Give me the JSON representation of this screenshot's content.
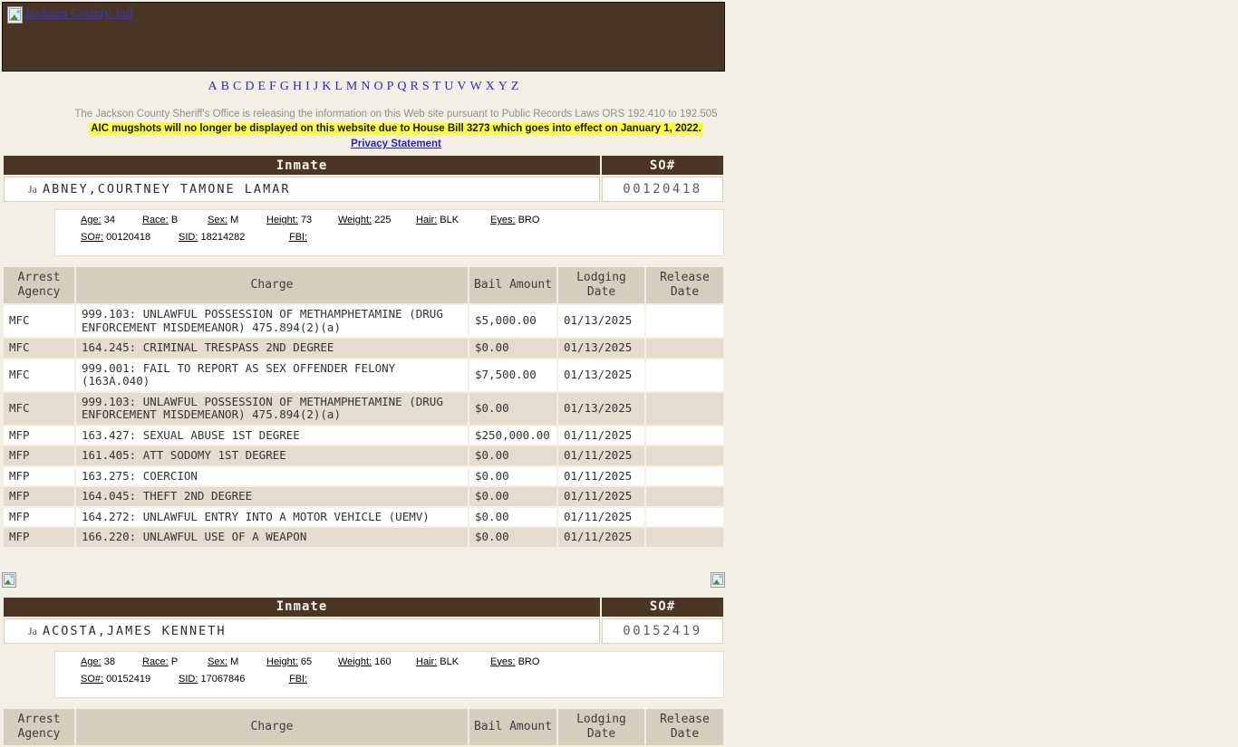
{
  "banner": {
    "title": "Jackson County Jail"
  },
  "alphabet": [
    "A",
    "B",
    "C",
    "D",
    "E",
    "F",
    "G",
    "H",
    "I",
    "J",
    "K",
    "L",
    "M",
    "N",
    "O",
    "P",
    "Q",
    "R",
    "S",
    "T",
    "U",
    "V",
    "W",
    "X",
    "Y",
    "Z"
  ],
  "top": {
    "disclaimer": "The Jackson County Sheriff's Office is releasing the information on this Web site pursuant to Public Records Laws ORS 192.410 to 192.505",
    "notice": "AIC mugshots will no longer be displayed on this website due to House Bill 3273 which goes into effect on January 1, 2022.",
    "privacy_link": "Privacy Statement"
  },
  "labels": {
    "inmate": "Inmate",
    "so": "SO#",
    "arrest_agency": "Arrest Agency",
    "charge": "Charge",
    "bail_amount": "Bail Amount",
    "lodging_date": "Lodging Date",
    "release_date": "Release Date",
    "age": "Age:",
    "race": "Race:",
    "sex": "Sex:",
    "height": "Height:",
    "weight": "Weight:",
    "hair": "Hair:",
    "eyes": "Eyes:",
    "so_label": "SO#:",
    "sid": "SID:",
    "fbi": "FBI:"
  },
  "inmates": [
    {
      "photo_alt": "Ja",
      "name": "ABNEY,COURTNEY TAMONE LAMAR",
      "so_number": "00120418",
      "demo": {
        "age": "34",
        "race": "B",
        "sex": "M",
        "height": "73",
        "weight": "225",
        "hair": "BLK",
        "eyes": "BRO",
        "so": "00120418",
        "sid": "18214282",
        "fbi": ""
      },
      "charges": [
        {
          "agency": "MFC",
          "charge": "999.103: UNLAWFUL POSSESSION OF METHAMPHETAMINE (DRUG ENFORCEMENT MISDEMEANOR) 475.894(2)(a)",
          "bail": "$5,000.00",
          "lodging": "01/13/2025",
          "release": ""
        },
        {
          "agency": "MFC",
          "charge": "164.245: CRIMINAL TRESPASS 2ND DEGREE",
          "bail": "$0.00",
          "lodging": "01/13/2025",
          "release": ""
        },
        {
          "agency": "MFC",
          "charge": "999.001: FAIL TO REPORT AS SEX OFFENDER FELONY (163A.040)",
          "bail": "$7,500.00",
          "lodging": "01/13/2025",
          "release": ""
        },
        {
          "agency": "MFC",
          "charge": "999.103: UNLAWFUL POSSESSION OF METHAMPHETAMINE (DRUG ENFORCEMENT MISDEMEANOR) 475.894(2)(a)",
          "bail": "$0.00",
          "lodging": "01/13/2025",
          "release": ""
        },
        {
          "agency": "MFP",
          "charge": "163.427: SEXUAL ABUSE 1ST DEGREE",
          "bail": "$250,000.00",
          "lodging": "01/11/2025",
          "release": ""
        },
        {
          "agency": "MFP",
          "charge": "161.405: ATT SODOMY 1ST DEGREE",
          "bail": "$0.00",
          "lodging": "01/11/2025",
          "release": ""
        },
        {
          "agency": "MFP",
          "charge": "163.275: COERCION",
          "bail": "$0.00",
          "lodging": "01/11/2025",
          "release": ""
        },
        {
          "agency": "MFP",
          "charge": "164.045: THEFT 2ND DEGREE",
          "bail": "$0.00",
          "lodging": "01/11/2025",
          "release": ""
        },
        {
          "agency": "MFP",
          "charge": "164.272: UNLAWFUL ENTRY INTO A MOTOR VEHICLE (UEMV)",
          "bail": "$0.00",
          "lodging": "01/11/2025",
          "release": ""
        },
        {
          "agency": "MFP",
          "charge": "166.220: UNLAWFUL USE OF A WEAPON",
          "bail": "$0.00",
          "lodging": "01/11/2025",
          "release": ""
        }
      ]
    },
    {
      "photo_alt": "Ja",
      "name": "ACOSTA,JAMES KENNETH",
      "so_number": "00152419",
      "demo": {
        "age": "38",
        "race": "P",
        "sex": "M",
        "height": "65",
        "weight": "160",
        "hair": "BLK",
        "eyes": "BRO",
        "so": "00152419",
        "sid": "17067846",
        "fbi": ""
      },
      "charges": []
    }
  ],
  "colors": {
    "header_brown": "#4b3626",
    "table_header_tan": "#d6cebd",
    "row_alt_beige": "#e4ddce",
    "page_background": "#f3efe4",
    "highlight_yellow": "#ffff3d",
    "link_blue": "#2222cc"
  }
}
